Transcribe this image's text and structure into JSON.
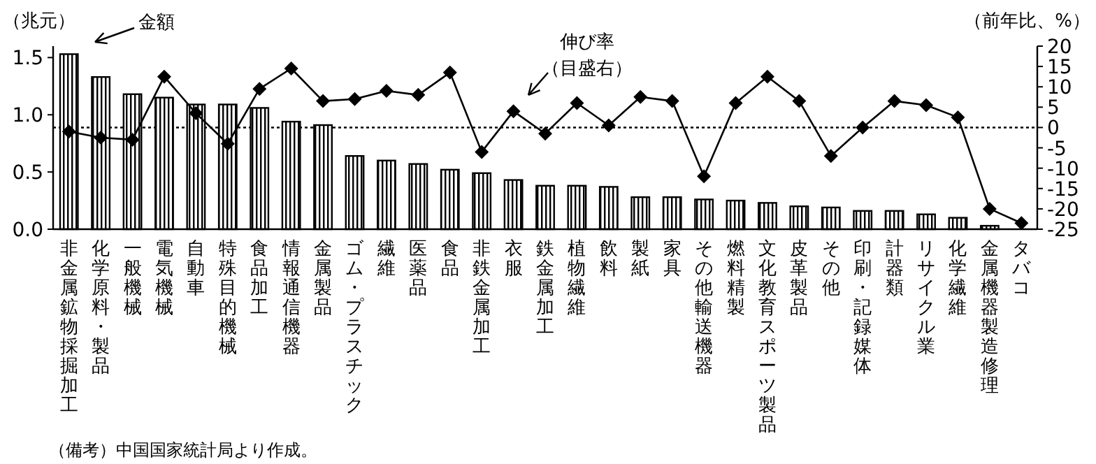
{
  "chart_data": {
    "type": "bar",
    "ylabel": "（兆元）",
    "y2label": "（前年比、%）",
    "categories": [
      "非金属鉱物採掘加工",
      "化学原料・製品",
      "一般機械",
      "電気機械",
      "自動車",
      "特殊目的機械",
      "食品加工",
      "情報通信機器",
      "金属製品",
      "ゴム・プラスチック",
      "繊維",
      "医薬品",
      "食品",
      "非鉄金属加工",
      "衣服",
      "鉄金属加工",
      "植物繊維",
      "飲料",
      "製紙",
      "家具",
      "その他輸送機器",
      "燃料精製",
      "文化教育スポーツ製品",
      "皮革製品",
      "その他",
      "印刷・記録媒体",
      "計器類",
      "リサイクル業",
      "化学繊維",
      "金属機器製造修理",
      "タバコ"
    ],
    "series": [
      {
        "color": "#000000",
        "values": [
          1.53,
          1.33,
          1.18,
          1.15,
          1.09,
          1.09,
          1.06,
          0.94,
          0.91,
          0.64,
          0.6,
          0.57,
          0.52,
          0.49,
          0.43,
          0.38,
          0.38,
          0.37,
          0.28,
          0.28,
          0.26,
          0.25,
          0.23,
          0.2,
          0.19,
          0.16,
          0.16,
          0.13,
          0.1,
          0.03,
          null
        ]
      },
      {
        "type": "line",
        "axis": "y2",
        "color": "#000000",
        "marker": "diamond",
        "line_style": "solid",
        "values": [
          -1,
          -2.5,
          -3,
          12.5,
          3.5,
          -4,
          9.5,
          14.5,
          6.5,
          7,
          9,
          8,
          13.5,
          -6,
          4,
          -1.5,
          6,
          0.5,
          7.5,
          6.5,
          -12,
          6,
          12.5,
          6.5,
          -7,
          0,
          6.5,
          5.5,
          2.5,
          -20,
          -23.5
        ]
      }
    ],
    "ylim": [
      0,
      1.6
    ],
    "yticks": [
      {
        "value": 0,
        "label": "0.0"
      },
      {
        "value": 0.5,
        "label": "0.5"
      },
      {
        "value": 1,
        "label": "1.0"
      },
      {
        "value": 1.5,
        "label": "1.5"
      }
    ],
    "y2lim": [
      -25,
      20
    ],
    "y2ticks": [
      -25,
      -20,
      -15,
      -10,
      -5,
      0,
      5,
      10,
      15,
      20
    ],
    "ref_lines": [
      {
        "axis": "y2",
        "value": 0,
        "line_style": "dotted",
        "color": "#000000"
      }
    ],
    "annotations": [
      "金額",
      "伸び率（目盛右）",
      "（備考）中国国家統計局より作成。"
    ]
  }
}
